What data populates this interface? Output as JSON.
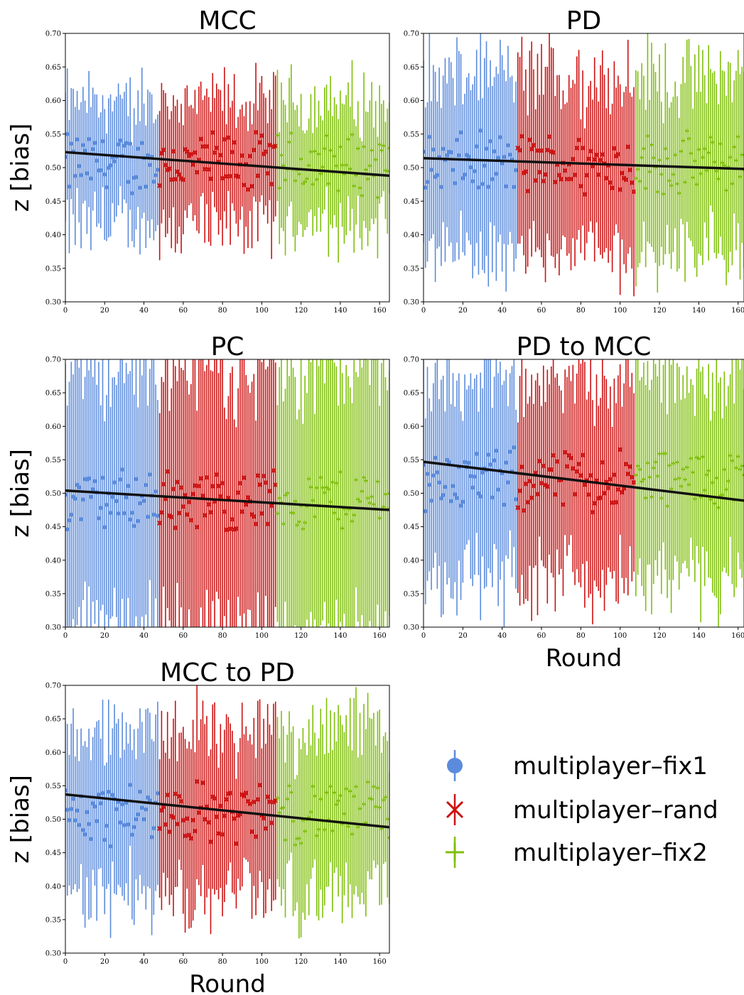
{
  "legend": {
    "entries": [
      {
        "label": "multiplayer–fix1",
        "color": "#5b8bdc",
        "marker": "circle"
      },
      {
        "label": "multiplayer–rand",
        "color": "#cc1111",
        "marker": "x"
      },
      {
        "label": "multiplayer–fix2",
        "color": "#7fbf0a",
        "marker": "plus"
      }
    ]
  },
  "chart_data": [
    {
      "type": "scatter",
      "title": "MCC",
      "xlabel": "",
      "ylabel": "z [bias]",
      "xlim": [
        0,
        165
      ],
      "ylim": [
        0.3,
        0.7
      ],
      "xticks": [
        "0",
        "20",
        "40",
        "60",
        "80",
        "100",
        "120",
        "140",
        "160"
      ],
      "yticks": [
        "0.30",
        "0.35",
        "0.40",
        "0.45",
        "0.50",
        "0.55",
        "0.60",
        "0.65",
        "0.70"
      ],
      "series_ranges": [
        {
          "name": "multiplayer–fix1",
          "x": [
            0,
            47
          ]
        },
        {
          "name": "multiplayer–rand",
          "x": [
            48,
            107
          ]
        },
        {
          "name": "multiplayer–fix2",
          "x": [
            108,
            165
          ]
        }
      ],
      "mean": 0.505,
      "spread": 0.045,
      "err": 0.09,
      "fit": {
        "x": [
          0,
          165
        ],
        "y": [
          0.523,
          0.488
        ]
      }
    },
    {
      "type": "scatter",
      "title": "PD",
      "xlabel": "",
      "ylabel": "",
      "xlim": [
        0,
        163
      ],
      "ylim": [
        0.3,
        0.7
      ],
      "xticks": [
        "0",
        "20",
        "40",
        "60",
        "80",
        "100",
        "120",
        "140",
        "160"
      ],
      "yticks": [
        "0.30",
        "0.35",
        "0.40",
        "0.45",
        "0.50",
        "0.55",
        "0.60",
        "0.65",
        "0.70"
      ],
      "series_ranges": [
        {
          "name": "multiplayer–fix1",
          "x": [
            0,
            47
          ]
        },
        {
          "name": "multiplayer–rand",
          "x": [
            48,
            107
          ]
        },
        {
          "name": "multiplayer–fix2",
          "x": [
            108,
            163
          ]
        }
      ],
      "mean": 0.505,
      "spread": 0.045,
      "err": 0.13,
      "fit": {
        "x": [
          0,
          163
        ],
        "y": [
          0.514,
          0.498
        ]
      }
    },
    {
      "type": "scatter",
      "title": "PC",
      "xlabel": "",
      "ylabel": "z [bias]",
      "xlim": [
        0,
        165
      ],
      "ylim": [
        0.3,
        0.7
      ],
      "xticks": [
        "0",
        "20",
        "40",
        "60",
        "80",
        "100",
        "120",
        "140",
        "160"
      ],
      "yticks": [
        "0.30",
        "0.35",
        "0.40",
        "0.45",
        "0.50",
        "0.55",
        "0.60",
        "0.65",
        "0.70"
      ],
      "series_ranges": [
        {
          "name": "multiplayer–fix1",
          "x": [
            0,
            47
          ]
        },
        {
          "name": "multiplayer–rand",
          "x": [
            48,
            107
          ]
        },
        {
          "name": "multiplayer–fix2",
          "x": [
            108,
            165
          ]
        }
      ],
      "mean": 0.49,
      "spread": 0.045,
      "err": 0.2,
      "fit": {
        "x": [
          0,
          165
        ],
        "y": [
          0.504,
          0.475
        ]
      }
    },
    {
      "type": "scatter",
      "title": "PD to MCC",
      "xlabel": "Round",
      "ylabel": "",
      "xlim": [
        0,
        163
      ],
      "ylim": [
        0.3,
        0.7
      ],
      "xticks": [
        "0",
        "20",
        "40",
        "60",
        "80",
        "100",
        "120",
        "140",
        "160"
      ],
      "yticks": [
        "0.30",
        "0.35",
        "0.40",
        "0.45",
        "0.50",
        "0.55",
        "0.60",
        "0.65",
        "0.70"
      ],
      "series_ranges": [
        {
          "name": "multiplayer–fix1",
          "x": [
            0,
            47
          ]
        },
        {
          "name": "multiplayer–rand",
          "x": [
            48,
            107
          ]
        },
        {
          "name": "multiplayer–fix2",
          "x": [
            108,
            163
          ]
        }
      ],
      "mean": 0.52,
      "spread": 0.045,
      "err": 0.15,
      "fit": {
        "x": [
          0,
          163
        ],
        "y": [
          0.547,
          0.489
        ]
      }
    },
    {
      "type": "scatter",
      "title": "MCC to PD",
      "xlabel": "Round",
      "ylabel": "z [bias]",
      "xlim": [
        0,
        165
      ],
      "ylim": [
        0.3,
        0.7
      ],
      "xticks": [
        "0",
        "20",
        "40",
        "60",
        "80",
        "100",
        "120",
        "140",
        "160"
      ],
      "yticks": [
        "0.30",
        "0.35",
        "0.40",
        "0.45",
        "0.50",
        "0.55",
        "0.60",
        "0.65",
        "0.70"
      ],
      "series_ranges": [
        {
          "name": "multiplayer–fix1",
          "x": [
            0,
            47
          ]
        },
        {
          "name": "multiplayer–rand",
          "x": [
            48,
            107
          ]
        },
        {
          "name": "multiplayer–fix2",
          "x": [
            108,
            165
          ]
        }
      ],
      "mean": 0.51,
      "spread": 0.045,
      "err": 0.12,
      "fit": {
        "x": [
          0,
          165
        ],
        "y": [
          0.537,
          0.488
        ]
      }
    }
  ]
}
